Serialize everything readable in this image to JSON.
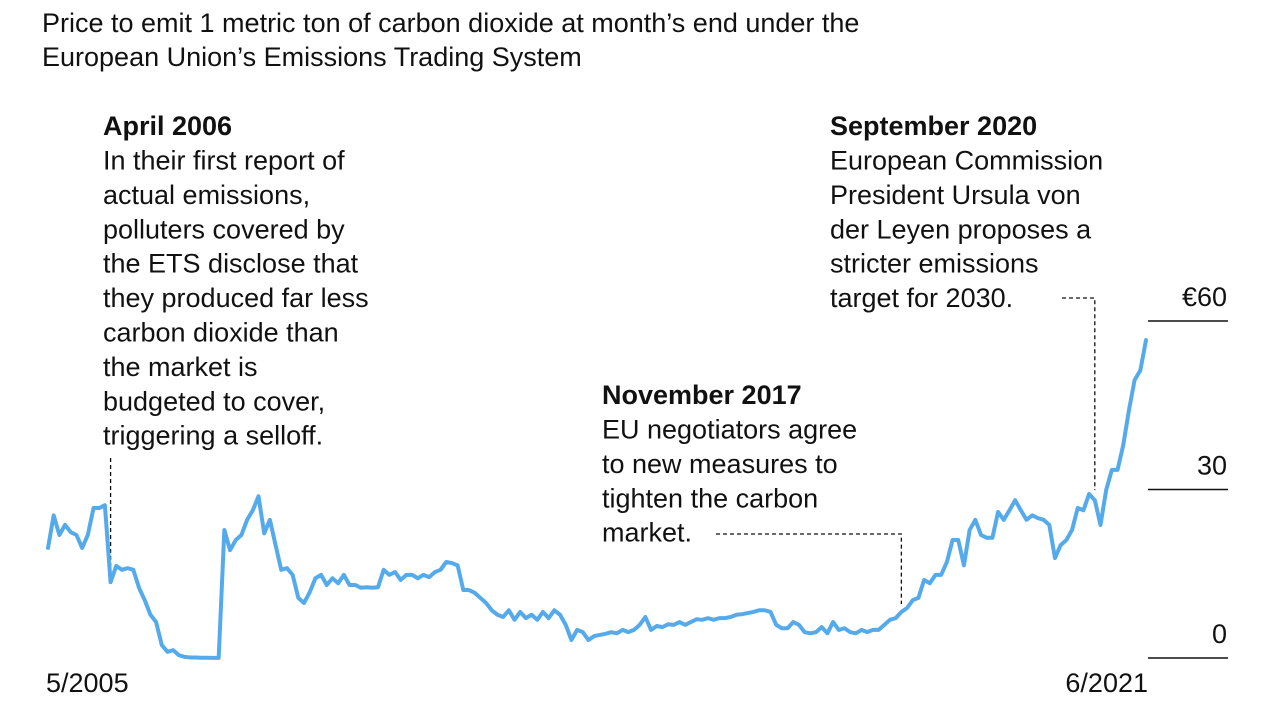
{
  "chart_data": {
    "type": "line",
    "title": "Price to emit 1 metric ton of carbon dioxide at month’s end under the European Union’s Emissions Trading System",
    "color": "#55aaec",
    "ylim": [
      0,
      60
    ],
    "yticks": [
      0,
      30,
      {
        "value": 60,
        "label": "€60"
      }
    ],
    "categories": [
      "5/2005",
      null,
      null,
      null,
      null,
      null,
      null,
      null,
      null,
      null,
      null,
      null,
      null,
      null,
      null,
      null,
      null,
      null,
      null,
      null,
      null,
      null,
      null,
      null,
      null,
      null,
      null,
      null,
      null,
      null,
      null,
      null,
      null,
      null,
      null,
      null,
      null,
      null,
      null,
      null,
      null,
      null,
      null,
      null,
      null,
      null,
      null,
      null,
      null,
      null,
      null,
      null,
      null,
      null,
      null,
      null,
      null,
      null,
      null,
      null,
      null,
      null,
      null,
      null,
      null,
      null,
      null,
      null,
      null,
      null,
      null,
      null,
      null,
      null,
      null,
      null,
      null,
      null,
      null,
      null,
      null,
      null,
      null,
      null,
      null,
      null,
      null,
      null,
      null,
      null,
      null,
      null,
      null,
      null,
      null,
      null,
      null,
      null,
      null,
      null,
      null,
      null,
      null,
      null,
      null,
      null,
      null,
      null,
      null,
      null,
      null,
      null,
      null,
      null,
      null,
      null,
      null,
      null,
      null,
      null,
      null,
      null,
      null,
      null,
      null,
      null,
      null,
      null,
      null,
      null,
      null,
      null,
      null,
      null,
      null,
      null,
      null,
      null,
      null,
      null,
      null,
      null,
      null,
      null,
      null,
      null,
      null,
      null,
      null,
      null,
      null,
      null,
      null,
      null,
      null,
      null,
      null,
      null,
      null,
      null,
      null,
      null,
      null,
      null,
      null,
      null,
      null,
      null,
      null,
      null,
      null,
      null,
      null,
      null,
      null,
      null,
      null,
      null,
      null,
      null,
      null,
      null,
      null,
      null,
      null,
      null,
      null,
      null,
      null,
      null,
      null,
      null,
      null,
      "6/2021"
    ],
    "values": [
      19.6,
      25.4,
      21.9,
      23.7,
      22.4,
      21.9,
      19.6,
      21.9,
      26.7,
      26.7,
      27.2,
      13.5,
      16.4,
      15.7,
      16.0,
      15.7,
      12.5,
      10.3,
      7.7,
      6.4,
      2.3,
      1.1,
      1.4,
      0.5,
      0.2,
      0.1,
      0.1,
      0.05,
      0.05,
      0.03,
      0.02,
      22.8,
      19.2,
      21.0,
      21.9,
      24.6,
      26.3,
      28.8,
      22.2,
      24.6,
      20.1,
      15.7,
      16.0,
      14.8,
      10.7,
      9.8,
      11.7,
      14.2,
      14.8,
      13.0,
      14.2,
      13.3,
      14.8,
      13.0,
      13.0,
      12.5,
      12.6,
      12.5,
      12.6,
      15.7,
      14.8,
      15.3,
      13.9,
      14.8,
      14.8,
      14.2,
      14.8,
      14.4,
      15.3,
      15.7,
      17.1,
      16.9,
      16.5,
      12.1,
      12.1,
      11.6,
      10.7,
      9.8,
      8.5,
      7.7,
      7.3,
      8.5,
      6.8,
      8.2,
      7.1,
      7.7,
      6.8,
      8.2,
      7.1,
      8.5,
      7.7,
      5.9,
      3.2,
      5.0,
      4.6,
      3.2,
      3.9,
      4.1,
      4.3,
      4.6,
      4.4,
      5.0,
      4.6,
      5.0,
      5.9,
      7.3,
      5.0,
      5.7,
      5.5,
      6.0,
      5.9,
      6.4,
      5.9,
      6.4,
      6.9,
      6.8,
      7.1,
      6.8,
      7.1,
      7.1,
      7.3,
      7.7,
      7.8,
      8.0,
      8.2,
      8.5,
      8.5,
      8.2,
      5.9,
      5.3,
      5.3,
      6.4,
      5.9,
      4.6,
      4.4,
      4.6,
      5.5,
      4.4,
      6.4,
      5.0,
      5.3,
      4.6,
      4.4,
      5.0,
      4.6,
      5.0,
      5.0,
      5.9,
      6.8,
      7.1,
      8.2,
      8.9,
      10.3,
      10.7,
      13.9,
      13.3,
      14.8,
      14.8,
      17.1,
      21.0,
      21.0,
      16.5,
      22.8,
      24.6,
      21.9,
      21.4,
      21.4,
      26.0,
      24.6,
      26.3,
      28.1,
      26.3,
      24.6,
      25.4,
      24.9,
      24.6,
      23.7,
      17.8,
      20.1,
      21.0,
      22.8,
      26.7,
      26.3,
      29.2,
      28.1,
      23.7,
      29.9,
      33.5,
      33.5,
      37.9,
      44.1,
      49.5,
      51.2,
      56.6
    ],
    "annotations": [
      {
        "title": "April 2006",
        "lines": [
          "In their first report of",
          "actual emissions,",
          "polluters covered by",
          "the ETS disclose that",
          "they produced far less",
          "carbon dioxide than",
          "the market is",
          "budgeted to cover,",
          "triggering a selloff."
        ]
      },
      {
        "title": "November 2017",
        "lines": [
          "EU negotiators agree",
          "to new measures to",
          "tighten the carbon",
          "market."
        ]
      },
      {
        "title": "September 2020",
        "lines": [
          "European Commission",
          "President Ursula von",
          "der Leyen proposes a",
          "stricter emissions",
          "target for 2030."
        ]
      }
    ]
  }
}
